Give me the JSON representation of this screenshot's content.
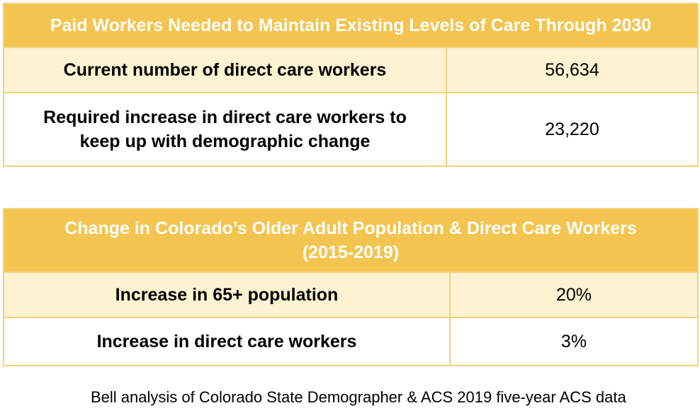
{
  "table1": {
    "header": "Paid Workers Needed to Maintain Existing Levels of Care Through 2030",
    "rows": [
      {
        "label": "Current number of direct care workers",
        "value": "56,634"
      },
      {
        "label_line1": "Required increase in direct care workers to",
        "label_line2": "keep up with demographic change",
        "value": "23,220"
      }
    ]
  },
  "table2": {
    "header_line1": "Change in Colorado’s Older Adult Population & Direct Care Workers",
    "header_line2": "(2015-2019)",
    "rows": [
      {
        "label": "Increase in 65+ population",
        "value": "20%"
      },
      {
        "label": "Increase in direct care workers",
        "value": "3%"
      }
    ]
  },
  "source_note": "Bell analysis of Colorado State Demographer & ACS 2019 five-year ACS data",
  "colors": {
    "header_background": "#f3c44f",
    "header_text": "#ffffff",
    "shaded_row": "#fdf2d1",
    "border": "#f4d27a"
  }
}
